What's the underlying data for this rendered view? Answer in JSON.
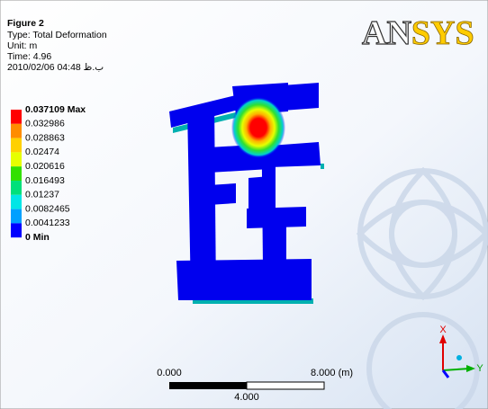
{
  "header": {
    "figure": "Figure 2",
    "lines": [
      "Type: Total Deformation",
      "Unit: m",
      "Time: 4.96",
      "2010/02/06 04:48 ب.ظ"
    ]
  },
  "logo": {
    "parts": [
      "AN",
      "SYS"
    ]
  },
  "legend": {
    "labels": [
      "0.037109 Max",
      "0.032986",
      "0.028863",
      "0.02474",
      "0.020616",
      "0.016493",
      "0.01237",
      "0.0082465",
      "0.0041233",
      "0 Min"
    ],
    "colors": [
      "#ff0000",
      "#ff8c00",
      "#ffd000",
      "#e6ff00",
      "#33e000",
      "#00e07a",
      "#00e6e6",
      "#00a0ff",
      "#0000ff"
    ]
  },
  "scale_bar": {
    "start": "0.000",
    "end": "8.000 (m)",
    "middle": "4.000"
  },
  "triad": {
    "x": "X",
    "y": "Y"
  }
}
